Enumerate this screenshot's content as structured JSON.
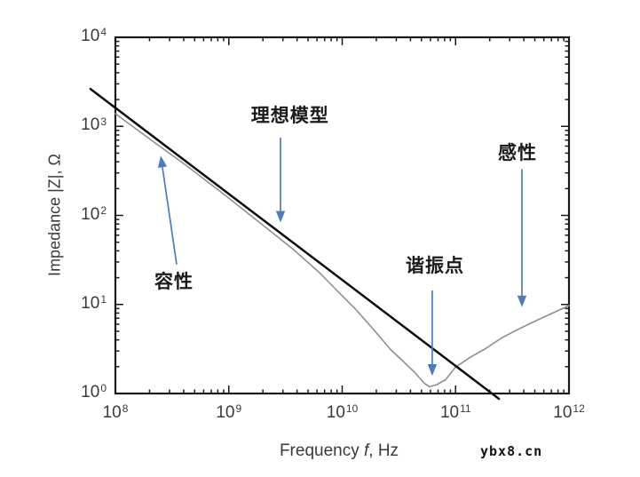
{
  "watermark": "ybx8.cn",
  "chart_data": {
    "type": "line",
    "scale": "log-log",
    "xlabel": {
      "pre": "Frequency ",
      "var": "f",
      "post": ", Hz"
    },
    "ylabel": "Impedance |Z|, Ω",
    "tick_base": "10",
    "x_tick_exponents": [
      8,
      9,
      10,
      11,
      12
    ],
    "y_tick_exponents": [
      0,
      1,
      2,
      3,
      4
    ],
    "xlim_log": [
      8,
      12
    ],
    "ylim_log": [
      0,
      4
    ],
    "grid": false,
    "legend": "none",
    "axis_color": "#1a1a1a",
    "arrow_color": "#4a7dc0",
    "series": [
      {
        "name": "measured-impedance",
        "color": "#8f8f8f",
        "width": 1.6,
        "points_log": [
          [
            8.0,
            3.142
          ],
          [
            8.313,
            2.853
          ],
          [
            8.626,
            2.554
          ],
          [
            8.939,
            2.254
          ],
          [
            9.252,
            1.945
          ],
          [
            9.566,
            1.616
          ],
          [
            9.8,
            1.357
          ],
          [
            9.957,
            1.157
          ],
          [
            10.113,
            0.948
          ],
          [
            10.27,
            0.728
          ],
          [
            10.427,
            0.499
          ],
          [
            10.544,
            0.349
          ],
          [
            10.646,
            0.229
          ],
          [
            10.724,
            0.12
          ],
          [
            10.771,
            0.07
          ],
          [
            10.834,
            0.1
          ],
          [
            10.912,
            0.16
          ],
          [
            10.997,
            0.289
          ],
          [
            11.131,
            0.409
          ],
          [
            11.264,
            0.509
          ],
          [
            11.405,
            0.618
          ],
          [
            11.562,
            0.728
          ],
          [
            11.718,
            0.828
          ],
          [
            11.875,
            0.908
          ],
          [
            12.0,
            0.988
          ]
        ]
      },
      {
        "name": "ideal-model-line",
        "color": "#0c0c0c",
        "width": 2.5,
        "points_log": [
          [
            7.78,
            3.42
          ],
          [
            11.382,
            -0.06
          ]
        ]
      }
    ],
    "annotations": [
      {
        "id": "ideal-model",
        "label": "理想模型",
        "text_log": [
          9.54,
          3.13
        ],
        "arrow_from_log": [
          9.456,
          2.873
        ],
        "arrow_to_log": [
          9.456,
          1.92
        ]
      },
      {
        "id": "capacitive",
        "label": "容性",
        "text_log": [
          8.517,
          1.267
        ],
        "arrow_from_log": [
          8.54,
          1.45
        ],
        "arrow_to_log": [
          8.4,
          2.67
        ]
      },
      {
        "id": "resonance-point",
        "label": "谐振点",
        "text_log": [
          10.818,
          1.446
        ],
        "arrow_from_log": [
          10.794,
          1.157
        ],
        "arrow_to_log": [
          10.794,
          0.2
        ]
      },
      {
        "id": "inductive",
        "label": "感性",
        "text_log": [
          11.546,
          2.713
        ],
        "arrow_from_log": [
          11.585,
          2.52
        ],
        "arrow_to_log": [
          11.585,
          0.97
        ]
      }
    ]
  }
}
